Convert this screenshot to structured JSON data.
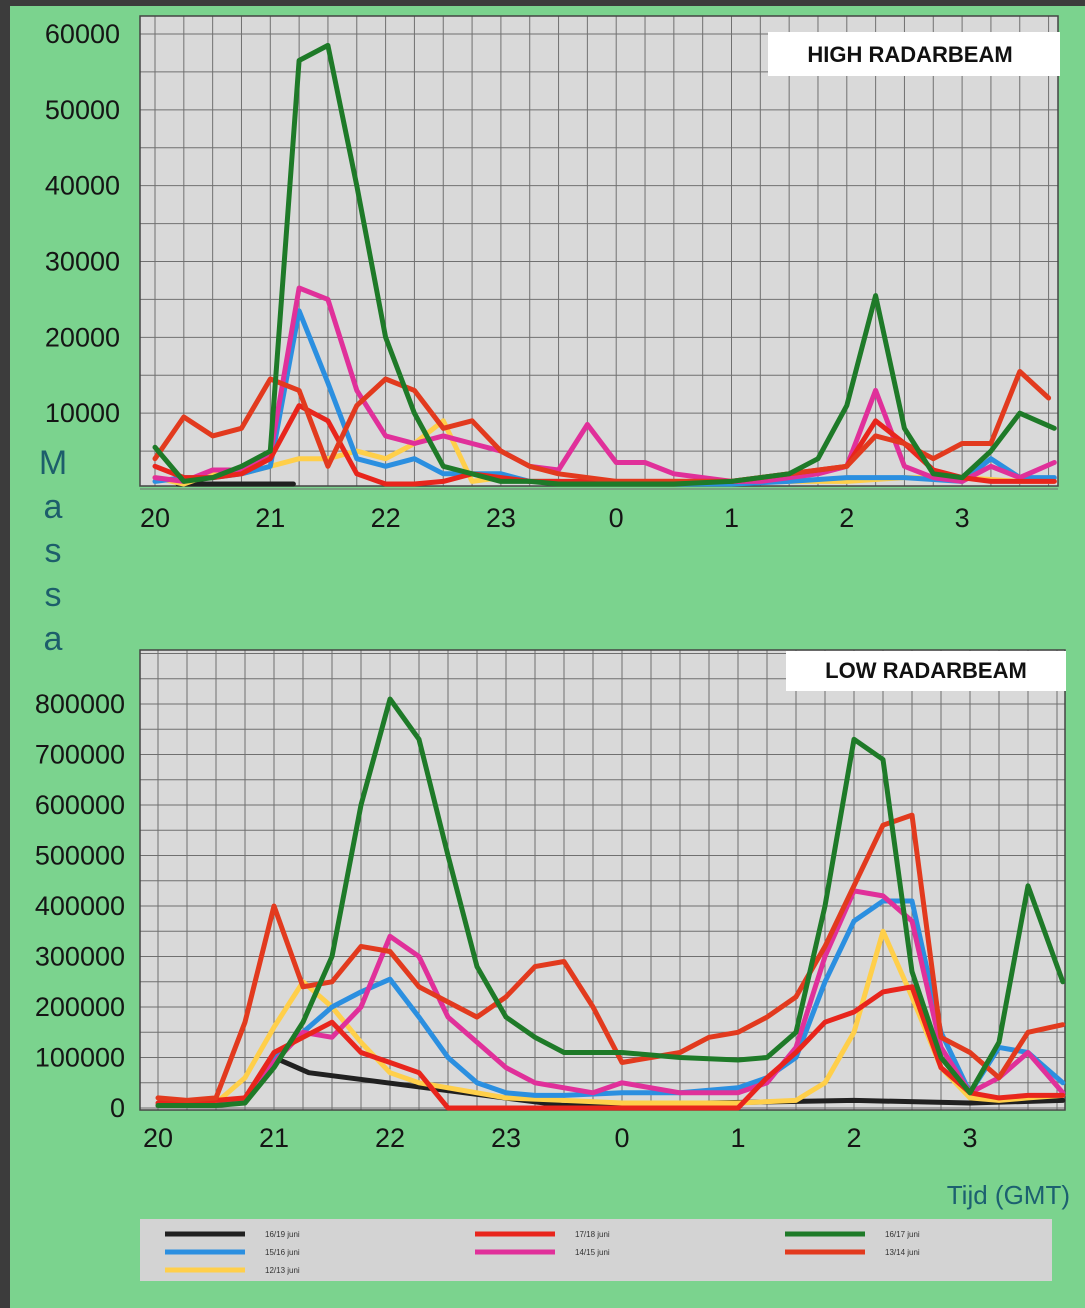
{
  "ylabel": "Massa",
  "xlabel": "Tijd (GMT)",
  "colors": {
    "16/19 juni": "#202020",
    "15/16 juni": "#2b8fe0",
    "12/13 juni": "#ffcf4a",
    "17/18 juni": "#e8251c",
    "14/15 juni": "#e0309a",
    "16/17 juni": "#1e7a28",
    "13/14 juni": "#e23a1e",
    "background": "#7bd38e",
    "plot": "#d9d9d9",
    "grid": "#6f6f6f"
  },
  "legend": [
    {
      "label": "16/19 juni",
      "key": "16/19 juni"
    },
    {
      "label": "17/18 juni",
      "key": "17/18 juni"
    },
    {
      "label": "16/17 juni",
      "key": "16/17 juni"
    },
    {
      "label": "15/16 juni",
      "key": "15/16 juni"
    },
    {
      "label": "14/15 juni",
      "key": "14/15 juni"
    },
    {
      "label": "13/14 juni",
      "key": "13/14 juni"
    },
    {
      "label": "12/13 juni",
      "key": "12/13 juni"
    }
  ],
  "chart_data": [
    {
      "type": "line",
      "title": "HIGH  RADARBEAM",
      "xlabel": "Tijd (GMT)",
      "ylabel": "Massa",
      "x_ticks": [
        "20",
        "21",
        "22",
        "23",
        "0",
        "1",
        "2",
        "3"
      ],
      "y_ticks": [
        10000,
        20000,
        30000,
        40000,
        50000,
        60000
      ],
      "xlim": [
        0,
        7.8
      ],
      "ylim": [
        0,
        61000
      ],
      "grid": true,
      "series": [
        {
          "name": "16/19 juni",
          "key": "16/19 juni",
          "x": [
            0.2,
            0.4,
            0.6,
            0.8,
            1.0,
            1.2
          ],
          "values": [
            200,
            200,
            100,
            100,
            200,
            300
          ]
        },
        {
          "name": "12/13 juni",
          "key": "12/13 juni",
          "x": [
            0,
            0.25,
            0.5,
            0.75,
            1.0,
            1.25,
            1.5,
            1.75,
            2.0,
            2.25,
            2.5,
            2.75,
            3.0,
            3.25,
            3.5,
            3.75,
            4.0,
            4.5,
            5.0,
            5.5,
            6.0,
            6.5,
            7.0,
            7.5,
            7.8
          ],
          "values": [
            1500,
            500,
            2000,
            2000,
            3000,
            4000,
            4000,
            5000,
            4000,
            6000,
            9000,
            1000,
            1500,
            1000,
            1000,
            500,
            500,
            500,
            1000,
            1000,
            1000,
            1500,
            1500,
            1000,
            1000
          ]
        },
        {
          "name": "15/16 juni",
          "key": "15/16 juni",
          "x": [
            0,
            0.25,
            0.5,
            0.75,
            1.0,
            1.25,
            1.5,
            1.75,
            2.0,
            2.25,
            2.5,
            2.75,
            3.0,
            3.25,
            3.5,
            4.0,
            4.5,
            5.0,
            5.5,
            6.0,
            6.5,
            7.0,
            7.25,
            7.5,
            7.8
          ],
          "values": [
            1000,
            1500,
            1500,
            2000,
            3000,
            23500,
            14000,
            4000,
            3000,
            4000,
            2000,
            2000,
            2000,
            1000,
            1000,
            500,
            500,
            500,
            1000,
            1500,
            1500,
            1000,
            4000,
            1500,
            1500
          ]
        },
        {
          "name": "14/15 juni",
          "key": "14/15 juni",
          "x": [
            0,
            0.25,
            0.5,
            0.75,
            1.0,
            1.25,
            1.5,
            1.75,
            2.0,
            2.25,
            2.5,
            2.75,
            3.0,
            3.25,
            3.5,
            3.75,
            4.0,
            4.25,
            4.5,
            4.75,
            5.0,
            5.25,
            5.5,
            5.75,
            6.0,
            6.25,
            6.5,
            6.75,
            7.0,
            7.25,
            7.5,
            7.8
          ],
          "values": [
            1500,
            1000,
            2500,
            2500,
            4500,
            26500,
            25000,
            13000,
            7000,
            6000,
            7000,
            6000,
            5000,
            3000,
            2500,
            8500,
            3500,
            3500,
            2000,
            1500,
            1000,
            1000,
            1500,
            2000,
            3000,
            13000,
            3000,
            1500,
            1000,
            3000,
            1500,
            3500
          ]
        },
        {
          "name": "17/18 juni",
          "key": "17/18 juni",
          "x": [
            0,
            0.25,
            0.5,
            0.75,
            1.0,
            1.25,
            1.5,
            1.75,
            2.0,
            2.25,
            2.5,
            2.75,
            3.0,
            3.25,
            3.5,
            4.0,
            4.5,
            5.0,
            5.5,
            6.0,
            6.25,
            6.5,
            6.75,
            7.0,
            7.25,
            7.5,
            7.8
          ],
          "values": [
            3000,
            1500,
            1500,
            2000,
            4000,
            11000,
            9000,
            2000,
            500,
            500,
            1000,
            2000,
            1500,
            1000,
            1000,
            1000,
            1000,
            1000,
            2000,
            3000,
            9000,
            6000,
            2500,
            1500,
            1000,
            1000,
            1000
          ]
        },
        {
          "name": "13/14 juni",
          "key": "13/14 juni",
          "x": [
            0,
            0.25,
            0.5,
            0.75,
            1.0,
            1.25,
            1.5,
            1.75,
            2.0,
            2.25,
            2.5,
            2.75,
            3.0,
            3.25,
            3.5,
            4.0,
            4.5,
            5.0,
            5.5,
            6.0,
            6.25,
            6.5,
            6.75,
            7.0,
            7.25,
            7.5,
            7.75
          ],
          "values": [
            4000,
            9500,
            7000,
            8000,
            14500,
            13000,
            3000,
            11000,
            14500,
            13000,
            8000,
            9000,
            5000,
            3000,
            2000,
            1000,
            1000,
            1000,
            2000,
            3000,
            7000,
            6000,
            4000,
            6000,
            6000,
            15500,
            12000
          ]
        },
        {
          "name": "16/17 juni",
          "key": "16/17 juni",
          "x": [
            0,
            0.25,
            0.5,
            0.75,
            1.0,
            1.25,
            1.5,
            1.75,
            2.0,
            2.25,
            2.5,
            2.75,
            3.0,
            3.25,
            3.5,
            4.0,
            4.5,
            5.0,
            5.5,
            5.75,
            6.0,
            6.25,
            6.5,
            6.75,
            7.0,
            7.25,
            7.5,
            7.8
          ],
          "values": [
            5500,
            1000,
            1500,
            3000,
            5000,
            56500,
            58500,
            40000,
            20000,
            10000,
            3000,
            2000,
            1000,
            1000,
            500,
            500,
            500,
            1000,
            2000,
            4000,
            11000,
            25500,
            8000,
            2000,
            1500,
            5000,
            10000,
            8000
          ]
        }
      ]
    },
    {
      "type": "line",
      "title": "LOW  RADARBEAM",
      "xlabel": "Tijd (GMT)",
      "ylabel": "Massa",
      "x_ticks": [
        "20",
        "21",
        "22",
        "23",
        "0",
        "1",
        "2",
        "3"
      ],
      "y_ticks": [
        0,
        100000,
        200000,
        300000,
        400000,
        500000,
        600000,
        700000,
        800000
      ],
      "xlim": [
        0,
        7.8
      ],
      "ylim": [
        0,
        830000
      ],
      "grid": true,
      "series": [
        {
          "name": "16/19 juni",
          "key": "16/19 juni",
          "x": [
            1.0,
            1.15,
            1.3,
            3.5,
            6.0,
            7.0,
            7.8
          ],
          "values": [
            100000,
            85000,
            70000,
            5000,
            15000,
            10000,
            15000
          ]
        },
        {
          "name": "12/13 juni",
          "key": "12/13 juni",
          "x": [
            0,
            0.25,
            0.5,
            0.75,
            1.0,
            1.25,
            1.5,
            1.75,
            2.0,
            2.25,
            2.5,
            2.75,
            3.0,
            3.5,
            4.0,
            4.5,
            5.0,
            5.5,
            5.75,
            6.0,
            6.25,
            6.5,
            6.75,
            7.0,
            7.25,
            7.5,
            7.8
          ],
          "values": [
            5000,
            5000,
            10000,
            60000,
            160000,
            250000,
            200000,
            130000,
            70000,
            50000,
            40000,
            30000,
            20000,
            15000,
            10000,
            10000,
            10000,
            15000,
            50000,
            150000,
            350000,
            220000,
            80000,
            20000,
            15000,
            20000,
            25000
          ]
        },
        {
          "name": "15/16 juni",
          "key": "15/16 juni",
          "x": [
            0,
            0.25,
            0.5,
            0.75,
            1.0,
            1.25,
            1.5,
            1.75,
            2.0,
            2.25,
            2.5,
            2.75,
            3.0,
            3.25,
            3.5,
            4.0,
            4.5,
            5.0,
            5.25,
            5.5,
            5.75,
            6.0,
            6.25,
            6.5,
            6.75,
            7.0,
            7.25,
            7.5,
            7.8
          ],
          "values": [
            5000,
            5000,
            5000,
            20000,
            100000,
            150000,
            200000,
            230000,
            255000,
            180000,
            100000,
            50000,
            30000,
            25000,
            25000,
            30000,
            30000,
            40000,
            60000,
            100000,
            250000,
            370000,
            410000,
            410000,
            150000,
            30000,
            120000,
            110000,
            50000
          ]
        },
        {
          "name": "14/15 juni",
          "key": "14/15 juni",
          "x": [
            0,
            0.25,
            0.5,
            0.75,
            1.0,
            1.25,
            1.5,
            1.75,
            2.0,
            2.25,
            2.5,
            2.75,
            3.0,
            3.25,
            3.5,
            3.75,
            4.0,
            4.5,
            5.0,
            5.25,
            5.5,
            5.75,
            6.0,
            6.25,
            6.5,
            6.75,
            7.0,
            7.25,
            7.5,
            7.8
          ],
          "values": [
            5000,
            5000,
            5000,
            20000,
            90000,
            150000,
            140000,
            200000,
            340000,
            300000,
            180000,
            130000,
            80000,
            50000,
            40000,
            30000,
            50000,
            30000,
            30000,
            50000,
            120000,
            300000,
            430000,
            420000,
            370000,
            120000,
            30000,
            60000,
            110000,
            30000
          ]
        },
        {
          "name": "17/18 juni",
          "key": "17/18 juni",
          "x": [
            0,
            0.25,
            0.5,
            0.75,
            1.0,
            1.25,
            1.5,
            1.75,
            2.0,
            2.25,
            2.5,
            2.75,
            3.0,
            3.25,
            3.5,
            3.75,
            4.0,
            4.5,
            5.0,
            5.25,
            5.5,
            5.75,
            6.0,
            6.25,
            6.5,
            6.75,
            7.0,
            7.25,
            7.5,
            7.8
          ],
          "values": [
            10000,
            10000,
            15000,
            20000,
            110000,
            140000,
            170000,
            110000,
            90000,
            70000,
            0,
            0,
            0,
            0,
            0,
            0,
            0,
            0,
            0,
            60000,
            110000,
            170000,
            190000,
            230000,
            240000,
            80000,
            30000,
            20000,
            25000,
            25000
          ]
        },
        {
          "name": "13/14 juni",
          "key": "13/14 juni",
          "x": [
            0,
            0.25,
            0.5,
            0.75,
            1.0,
            1.25,
            1.5,
            1.75,
            2.0,
            2.25,
            2.5,
            2.75,
            3.0,
            3.25,
            3.5,
            3.75,
            4.0,
            4.25,
            4.5,
            4.75,
            5.0,
            5.25,
            5.5,
            5.75,
            6.0,
            6.25,
            6.5,
            6.75,
            7.0,
            7.25,
            7.5,
            7.8
          ],
          "values": [
            20000,
            15000,
            20000,
            170000,
            400000,
            240000,
            250000,
            320000,
            310000,
            240000,
            210000,
            180000,
            220000,
            280000,
            290000,
            200000,
            90000,
            100000,
            110000,
            140000,
            150000,
            180000,
            220000,
            320000,
            440000,
            560000,
            580000,
            140000,
            110000,
            60000,
            150000,
            165000
          ]
        },
        {
          "name": "16/17 juni",
          "key": "16/17 juni",
          "x": [
            0,
            0.25,
            0.5,
            0.75,
            1.0,
            1.25,
            1.5,
            1.75,
            2.0,
            2.25,
            2.5,
            2.75,
            3.0,
            3.25,
            3.5,
            4.0,
            4.5,
            5.0,
            5.25,
            5.5,
            5.75,
            6.0,
            6.25,
            6.5,
            6.75,
            7.0,
            7.25,
            7.5,
            7.8
          ],
          "values": [
            5000,
            5000,
            5000,
            10000,
            80000,
            170000,
            300000,
            600000,
            810000,
            730000,
            500000,
            280000,
            180000,
            140000,
            110000,
            110000,
            100000,
            95000,
            100000,
            150000,
            400000,
            730000,
            690000,
            270000,
            100000,
            30000,
            130000,
            440000,
            250000
          ]
        }
      ]
    }
  ]
}
